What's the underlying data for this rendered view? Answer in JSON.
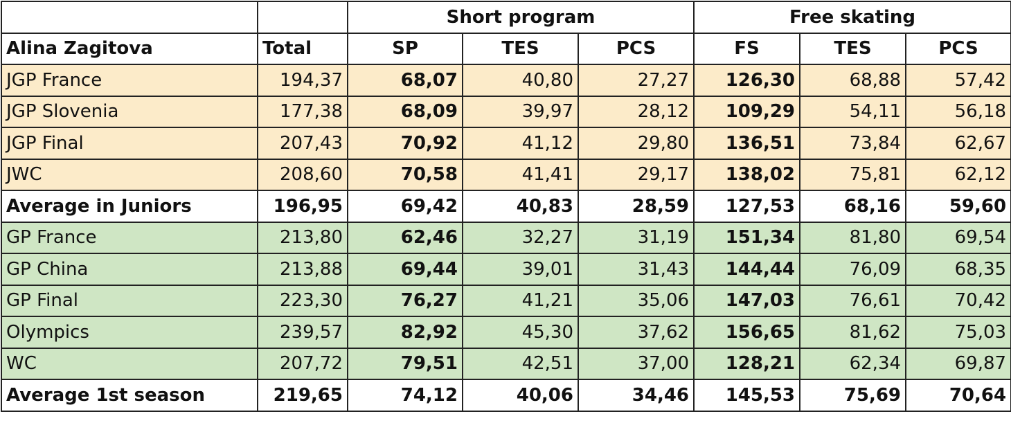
{
  "chart_data": {
    "type": "table",
    "groups": [
      {
        "label": "",
        "span": 1
      },
      {
        "label": "",
        "span": 1
      },
      {
        "label": "Short program",
        "span": 3
      },
      {
        "label": "Free skating",
        "span": 3
      }
    ],
    "columns": [
      "Alina Zagitova",
      "Total",
      "SP",
      "TES",
      "PCS",
      "FS",
      "TES",
      "PCS"
    ],
    "rows": [
      {
        "kind": "junior",
        "cells": [
          "JGP France",
          "194,37",
          "68,07",
          "40,80",
          "27,27",
          "126,30",
          "68,88",
          "57,42"
        ]
      },
      {
        "kind": "junior",
        "cells": [
          "JGP Slovenia",
          "177,38",
          "68,09",
          "39,97",
          "28,12",
          "109,29",
          "54,11",
          "56,18"
        ]
      },
      {
        "kind": "junior",
        "cells": [
          "JGP Final",
          "207,43",
          "70,92",
          "41,12",
          "29,80",
          "136,51",
          "73,84",
          "62,67"
        ]
      },
      {
        "kind": "junior",
        "cells": [
          "JWC",
          "208,60",
          "70,58",
          "41,41",
          "29,17",
          "138,02",
          "75,81",
          "62,12"
        ]
      },
      {
        "kind": "avg",
        "cells": [
          "Average in Juniors",
          "196,95",
          "69,42",
          "40,83",
          "28,59",
          "127,53",
          "68,16",
          "59,60"
        ]
      },
      {
        "kind": "senior",
        "cells": [
          "GP France",
          "213,80",
          "62,46",
          "32,27",
          "31,19",
          "151,34",
          "81,80",
          "69,54"
        ]
      },
      {
        "kind": "senior",
        "cells": [
          "GP China",
          "213,88",
          "69,44",
          "39,01",
          "31,43",
          "144,44",
          "76,09",
          "68,35"
        ]
      },
      {
        "kind": "senior",
        "cells": [
          "GP Final",
          "223,30",
          "76,27",
          "41,21",
          "35,06",
          "147,03",
          "76,61",
          "70,42"
        ]
      },
      {
        "kind": "senior",
        "cells": [
          "Olympics",
          "239,57",
          "82,92",
          "45,30",
          "37,62",
          "156,65",
          "81,62",
          "75,03"
        ]
      },
      {
        "kind": "senior",
        "cells": [
          "WC",
          "207,72",
          "79,51",
          "42,51",
          "37,00",
          "128,21",
          "62,34",
          "69,87"
        ]
      },
      {
        "kind": "avg",
        "cells": [
          "Average 1st season",
          "219,65",
          "74,12",
          "40,06",
          "34,46",
          "145,53",
          "75,69",
          "70,64"
        ]
      }
    ],
    "bold_columns": [
      2,
      5
    ],
    "colors": {
      "junior_row": "#fcebc9",
      "senior_row": "#cfe6c4",
      "average_row": "#ffffff",
      "border": "#222222"
    }
  }
}
